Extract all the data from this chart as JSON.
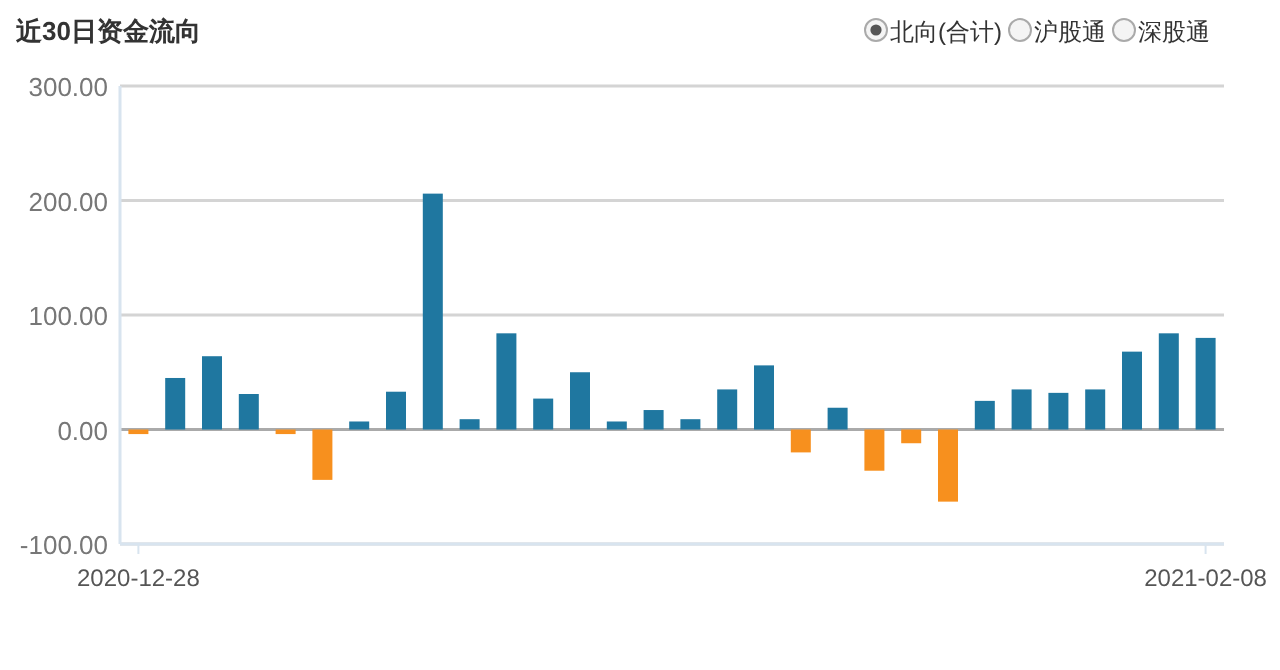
{
  "chart_data": {
    "type": "bar",
    "title": "近30日资金流向",
    "annotations": [
      "北向(合计)",
      "沪股通",
      "深股通"
    ],
    "categories": [
      "2020-12-28",
      null,
      null,
      null,
      null,
      null,
      null,
      null,
      null,
      null,
      null,
      null,
      null,
      null,
      null,
      null,
      null,
      null,
      null,
      null,
      null,
      null,
      null,
      null,
      null,
      null,
      null,
      null,
      null,
      "2021-02-08"
    ],
    "values": [
      -4,
      45,
      64,
      31,
      -4,
      -44,
      7,
      33,
      206,
      9,
      84,
      27,
      50,
      7,
      17,
      9,
      35,
      56,
      -20,
      19,
      -36,
      -12,
      -63,
      25,
      35,
      32,
      35,
      68,
      84,
      80
    ],
    "colors": [
      "#f7901e",
      "#1f77a0",
      "#1f77a0",
      "#1f77a0",
      "#f7901e",
      "#f7901e",
      "#1f77a0",
      "#1f77a0",
      "#1f77a0",
      "#1f77a0",
      "#1f77a0",
      "#1f77a0",
      "#1f77a0",
      "#1f77a0",
      "#1f77a0",
      "#1f77a0",
      "#1f77a0",
      "#1f77a0",
      "#f7901e",
      "#1f77a0",
      "#f7901e",
      "#f7901e",
      "#f7901e",
      "#1f77a0",
      "#1f77a0",
      "#1f77a0",
      "#1f77a0",
      "#1f77a0",
      "#1f77a0",
      "#1f77a0"
    ],
    "ylim": [
      -100,
      300
    ],
    "yticks": [
      {
        "value": -100,
        "label": "-100.00"
      },
      {
        "value": 0,
        "label": "0.00"
      },
      {
        "value": 100,
        "label": "100.00"
      },
      {
        "value": 200,
        "label": "200.00"
      },
      {
        "value": 300,
        "label": "300.00"
      }
    ],
    "grid": "y"
  }
}
